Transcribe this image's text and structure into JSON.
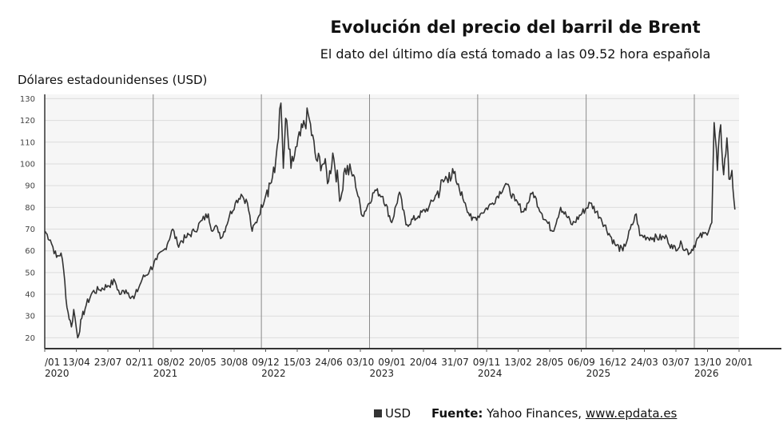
{
  "header": {
    "title": "Evolución del precio del barril de Brent",
    "subtitle": "El dato del último día está tomado a las 09.52 hora española"
  },
  "legend": {
    "label": "USD"
  },
  "source": {
    "label": "Fuente:",
    "text": "Yahoo Finances,",
    "link": "www.epdata.es"
  },
  "chart_data": {
    "type": "line",
    "title": "Evolución del precio del barril de Brent",
    "subtitle": "El dato del último día está tomado a las 09.52 hora española",
    "ylabel": "Dólares estadounidenses (USD)",
    "xlabel": "",
    "ylim": [
      15,
      132
    ],
    "xlim": [
      "2020-01-01",
      "2026-06-01"
    ],
    "grid": true,
    "y_ticks": [
      20,
      30,
      40,
      50,
      60,
      70,
      80,
      90,
      100,
      110,
      120,
      130
    ],
    "x_tick_labels": [
      "/01",
      "13/04",
      "23/07",
      "02/11",
      "08/02",
      "20/05",
      "30/08",
      "09/12",
      "15/03",
      "24/06",
      "03/10",
      "09/01",
      "20/04",
      "31/07",
      "09/11",
      "13/02",
      "28/05",
      "06/09",
      "16/12",
      "24/03",
      "03/07",
      "13/10",
      "20/01"
    ],
    "year_labels": [
      {
        "label": "2020",
        "date": "2020-01-01"
      },
      {
        "label": "2021",
        "date": "2021-01-01"
      },
      {
        "label": "2022",
        "date": "2022-01-01"
      },
      {
        "label": "2023",
        "date": "2023-01-01"
      },
      {
        "label": "2024",
        "date": "2024-01-01"
      },
      {
        "label": "2025",
        "date": "2025-01-01"
      },
      {
        "label": "2026",
        "date": "2026-01-01"
      }
    ],
    "legend_position": "bottom",
    "series": [
      {
        "name": "USD",
        "color": "#333333",
        "points": [
          [
            "2020-01-02",
            69
          ],
          [
            "2020-01-20",
            65
          ],
          [
            "2020-02-10",
            57
          ],
          [
            "2020-02-25",
            59
          ],
          [
            "2020-03-05",
            51
          ],
          [
            "2020-03-16",
            34
          ],
          [
            "2020-03-31",
            25
          ],
          [
            "2020-04-08",
            33
          ],
          [
            "2020-04-21",
            20
          ],
          [
            "2020-05-05",
            29
          ],
          [
            "2020-05-20",
            35
          ],
          [
            "2020-06-10",
            41
          ],
          [
            "2020-07-01",
            42
          ],
          [
            "2020-08-01",
            44
          ],
          [
            "2020-08-25",
            46
          ],
          [
            "2020-09-10",
            40
          ],
          [
            "2020-10-01",
            42
          ],
          [
            "2020-10-28",
            38
          ],
          [
            "2020-11-25",
            47
          ],
          [
            "2020-12-20",
            51
          ],
          [
            "2021-01-13",
            56
          ],
          [
            "2021-02-10",
            61
          ],
          [
            "2021-03-08",
            70
          ],
          [
            "2021-03-24",
            63
          ],
          [
            "2021-04-20",
            66
          ],
          [
            "2021-05-20",
            69
          ],
          [
            "2021-06-15",
            74
          ],
          [
            "2021-07-06",
            77
          ],
          [
            "2021-07-20",
            69
          ],
          [
            "2021-08-05",
            71
          ],
          [
            "2021-08-20",
            66
          ],
          [
            "2021-09-15",
            76
          ],
          [
            "2021-10-05",
            82
          ],
          [
            "2021-10-25",
            86
          ],
          [
            "2021-11-15",
            82
          ],
          [
            "2021-12-01",
            69
          ],
          [
            "2021-12-20",
            75
          ],
          [
            "2022-01-20",
            88
          ],
          [
            "2022-02-15",
            96
          ],
          [
            "2022-03-08",
            128
          ],
          [
            "2022-03-16",
            98
          ],
          [
            "2022-03-24",
            121
          ],
          [
            "2022-04-11",
            98
          ],
          [
            "2022-05-01",
            108
          ],
          [
            "2022-06-08",
            123
          ],
          [
            "2022-07-05",
            102
          ],
          [
            "2022-08-01",
            100
          ],
          [
            "2022-08-16",
            92
          ],
          [
            "2022-08-30",
            105
          ],
          [
            "2022-09-26",
            84
          ],
          [
            "2022-10-10",
            98
          ],
          [
            "2022-11-08",
            95
          ],
          [
            "2022-12-08",
            76
          ],
          [
            "2023-01-20",
            88
          ],
          [
            "2023-02-15",
            85
          ],
          [
            "2023-03-17",
            73
          ],
          [
            "2023-04-12",
            87
          ],
          [
            "2023-05-04",
            72
          ],
          [
            "2023-06-15",
            76
          ],
          [
            "2023-07-20",
            80
          ],
          [
            "2023-08-15",
            86
          ],
          [
            "2023-09-27",
            96
          ],
          [
            "2023-10-20",
            92
          ],
          [
            "2023-11-20",
            82
          ],
          [
            "2023-12-12",
            74
          ],
          [
            "2024-01-10",
            77
          ],
          [
            "2024-02-20",
            82
          ],
          [
            "2024-04-05",
            91
          ],
          [
            "2024-05-06",
            83
          ],
          [
            "2024-06-04",
            78
          ],
          [
            "2024-07-05",
            87
          ],
          [
            "2024-08-05",
            77
          ],
          [
            "2024-09-10",
            69
          ],
          [
            "2024-10-07",
            80
          ],
          [
            "2024-11-15",
            72
          ],
          [
            "2025-01-15",
            82
          ],
          [
            "2025-02-20",
            75
          ],
          [
            "2025-04-08",
            63
          ],
          [
            "2025-05-05",
            60
          ],
          [
            "2025-06-19",
            77
          ],
          [
            "2025-07-01",
            67
          ],
          [
            "2025-08-15",
            66
          ],
          [
            "2025-10-01",
            66
          ],
          [
            "2025-10-20",
            61
          ],
          [
            "2025-11-20",
            63
          ],
          [
            "2025-12-16",
            59
          ],
          [
            "2026-01-15",
            66
          ],
          [
            "2026-02-10",
            68
          ],
          [
            "2026-03-01",
            73
          ],
          [
            "2026-03-09",
            119
          ],
          [
            "2026-03-20",
            97
          ],
          [
            "2026-03-31",
            118
          ],
          [
            "2026-04-10",
            95
          ],
          [
            "2026-04-21",
            112
          ],
          [
            "2026-04-28",
            93
          ],
          [
            "2026-05-08",
            97
          ],
          [
            "2026-05-18",
            79
          ]
        ]
      }
    ]
  }
}
